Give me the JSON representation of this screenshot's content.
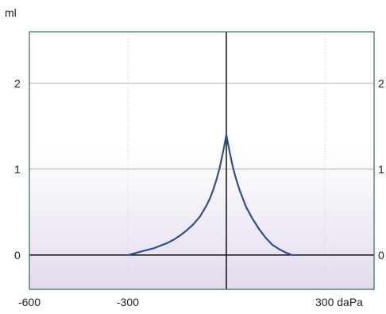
{
  "chart_data": {
    "type": "line",
    "y_unit": "ml",
    "x_unit": "daPa",
    "xlim": [
      -600,
      450
    ],
    "ylim": [
      -0.4,
      2.6
    ],
    "x_ticks": [
      -600,
      -300,
      300
    ],
    "x_tick_labels": [
      "-600",
      "-300",
      "300 daPa"
    ],
    "y_ticks": [
      0,
      1,
      2
    ],
    "y_tick_labels_left": [
      "0",
      "1",
      "2"
    ],
    "y_tick_labels_right": [
      "0",
      "1",
      "2"
    ],
    "grid": true,
    "reference_lines": {
      "x_zero": 0,
      "y_zero": 0
    },
    "series": [
      {
        "color": "#2f4f8f",
        "x": [
          -300,
          -280,
          -260,
          -240,
          -220,
          -200,
          -180,
          -160,
          -140,
          -120,
          -100,
          -80,
          -60,
          -50,
          -40,
          -30,
          -20,
          -10,
          -5,
          0,
          5,
          10,
          20,
          30,
          40,
          50,
          60,
          80,
          100,
          120,
          140,
          160,
          180,
          200,
          210
        ],
        "y": [
          0.0,
          0.02,
          0.04,
          0.06,
          0.08,
          0.11,
          0.14,
          0.18,
          0.23,
          0.29,
          0.36,
          0.45,
          0.58,
          0.66,
          0.76,
          0.88,
          1.02,
          1.2,
          1.3,
          1.4,
          1.3,
          1.2,
          1.02,
          0.88,
          0.76,
          0.66,
          0.56,
          0.42,
          0.3,
          0.2,
          0.12,
          0.07,
          0.03,
          0.0,
          0.0
        ]
      }
    ],
    "colors": {
      "frame": "#2e6a62",
      "gradient_top": "#ffffff",
      "gradient_bottom": "#e3dbed",
      "grid_major": "#b7aea6",
      "grid_minor": "#d8d4e2",
      "axis_zero": "#1a1a1a",
      "curve": "#2f4f8f"
    }
  }
}
